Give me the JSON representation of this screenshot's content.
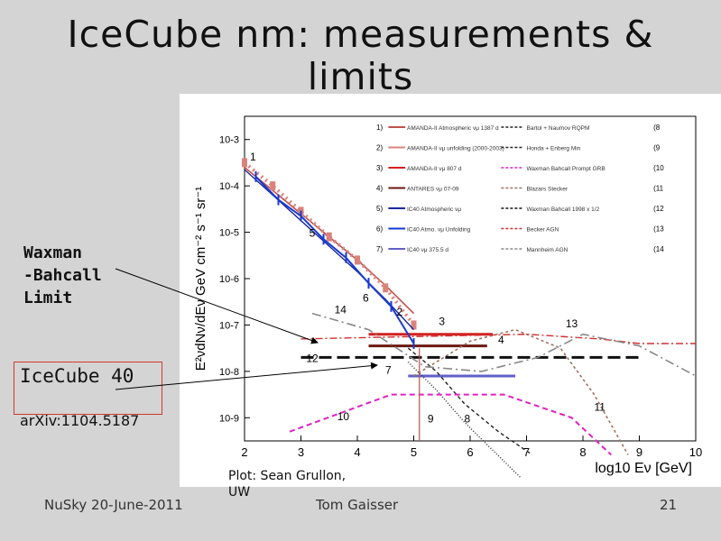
{
  "slide": {
    "title_line1": "IceCube nm: measurements &",
    "title_line2": "limits",
    "label_wb_1": "Waxman",
    "label_wb_2": "-Bahcall",
    "label_wb_3": "Limit",
    "label_ic40": "IceCube 40",
    "arxiv": "arXiv:1104.5187",
    "credit": "Plot: Sean Grullon,\nUW",
    "footer_left": "NuSky 20-June-2011",
    "footer_center": "Tom Gaisser",
    "footer_right": "21"
  },
  "chart_data": {
    "type": "line",
    "title": "",
    "xlabel": "log10 Eν [GeV]",
    "ylabel": "E²νdNν/dEν GeV cm⁻² s⁻¹ sr⁻¹",
    "xlim": [
      2,
      10
    ],
    "x_ticks": [
      2,
      3,
      4,
      5,
      6,
      7,
      8,
      9,
      10
    ],
    "y_log_range": [
      -9.5,
      -2.5
    ],
    "y_ticks": [
      "10-3",
      "10-4",
      "10-5",
      "10-6",
      "10-7",
      "10-8",
      "10-9"
    ],
    "legend_left": [
      {
        "num": "1)",
        "text": "AMANDA-II Atmospheric νμ 1387 d",
        "color": "#c0504d"
      },
      {
        "num": "2)",
        "text": "AMANDA-II νμ unfolding (2000-2003)",
        "color": "#d9837b"
      },
      {
        "num": "3)",
        "text": "AMANDA-II νμ 807 d",
        "color": "#d42020"
      },
      {
        "num": "4)",
        "text": "ANTARES νμ 07-09",
        "color": "#6b1a10"
      },
      {
        "num": "5)",
        "text": "IC40 Atmospheric νμ",
        "color": "#1a2a9a"
      },
      {
        "num": "6)",
        "text": "IC40 Atmo. νμ Unfolding",
        "color": "#1a3ad0"
      },
      {
        "num": "7)",
        "text": "IC40 νμ 375.5 d",
        "color": "#6060c8"
      }
    ],
    "legend_right": [
      {
        "num": "(8",
        "text": "Bartol + Naumov RQPM",
        "color": "#222222"
      },
      {
        "num": "(9",
        "text": "Honda + Enberg Min",
        "color": "#222222"
      },
      {
        "num": "(10",
        "text": "Waxman Bahcall Prompt GRB",
        "color": "#e020c0"
      },
      {
        "num": "(11",
        "text": "Blazars Stecker",
        "color": "#a07060"
      },
      {
        "num": "(12",
        "text": "Waxman Bahcall 1998 x 1/2",
        "color": "#111111"
      },
      {
        "num": "(13",
        "text": "Becker AGN",
        "color": "#d03030"
      },
      {
        "num": "(14",
        "text": "Mannheim AGN",
        "color": "#888888"
      }
    ],
    "series": [
      {
        "name": "1",
        "x": [
          2.0,
          2.5,
          3.0,
          3.5,
          4.0,
          4.5,
          5.0
        ],
        "logy": [
          -3.6,
          -4.1,
          -4.6,
          -5.1,
          -5.6,
          -6.15,
          -6.75
        ]
      },
      {
        "name": "2",
        "x": [
          2.0,
          2.5,
          3.0,
          3.5,
          4.0,
          4.5,
          5.0
        ],
        "logy": [
          -3.5,
          -4.0,
          -4.55,
          -5.1,
          -5.6,
          -6.2,
          -7.0
        ]
      },
      {
        "name": "3",
        "x": [
          4.2,
          6.4
        ],
        "logy": [
          -7.2,
          -7.2
        ]
      },
      {
        "name": "4",
        "x": [
          4.2,
          6.3
        ],
        "logy": [
          -7.45,
          -7.45
        ]
      },
      {
        "name": "5",
        "x": [
          2.0,
          2.5,
          3.0,
          3.5,
          4.0,
          4.5,
          5.0
        ],
        "logy": [
          -3.65,
          -4.2,
          -4.75,
          -5.3,
          -5.85,
          -6.45,
          -7.1
        ]
      },
      {
        "name": "6",
        "x": [
          2.2,
          2.6,
          3.0,
          3.4,
          3.8,
          4.2,
          4.6,
          5.0
        ],
        "logy": [
          -3.8,
          -4.3,
          -4.65,
          -5.15,
          -5.55,
          -6.1,
          -6.6,
          -7.4
        ]
      },
      {
        "name": "7",
        "x": [
          4.9,
          6.8
        ],
        "logy": [
          -8.1,
          -8.1
        ]
      },
      {
        "name": "8",
        "x": [
          4.9,
          5.4,
          5.9,
          6.5,
          7.1
        ],
        "logy": [
          -7.5,
          -8.0,
          -8.7,
          -9.3,
          -9.8
        ]
      },
      {
        "name": "9",
        "x": [
          4.9,
          5.4,
          5.9,
          6.4,
          6.9
        ],
        "logy": [
          -7.8,
          -8.4,
          -9.1,
          -9.7,
          -10.3
        ]
      },
      {
        "name": "10",
        "x": [
          2.8,
          4.6,
          6.6,
          7.8,
          8.5
        ],
        "logy": [
          -9.3,
          -8.5,
          -8.5,
          -9.0,
          -9.8
        ]
      },
      {
        "name": "11",
        "x": [
          5.0,
          6.0,
          6.8,
          7.6,
          8.2,
          8.8
        ],
        "logy": [
          -8.1,
          -7.35,
          -7.1,
          -7.5,
          -8.5,
          -9.8
        ]
      },
      {
        "name": "12",
        "x": [
          3.0,
          9.0
        ],
        "logy": [
          -7.7,
          -7.7
        ]
      },
      {
        "name": "13",
        "x": [
          3.0,
          5.0,
          7.0,
          8.3,
          9.0,
          10.0
        ],
        "logy": [
          -7.3,
          -7.25,
          -7.2,
          -7.3,
          -7.4,
          -7.4
        ]
      },
      {
        "name": "14",
        "x": [
          3.2,
          4.2,
          5.2,
          6.2,
          7.2,
          8.0,
          9.0,
          10.0
        ],
        "logy": [
          -6.75,
          -7.1,
          -7.9,
          -8.0,
          -7.7,
          -7.2,
          -7.45,
          -8.1
        ]
      }
    ],
    "curve_labels": [
      {
        "text": "1",
        "x": 2.15,
        "logy": -3.45
      },
      {
        "text": "2",
        "x": 4.75,
        "logy": -6.8
      },
      {
        "text": "3",
        "x": 5.5,
        "logy": -7.0
      },
      {
        "text": "4",
        "x": 6.55,
        "logy": -7.4
      },
      {
        "text": "5",
        "x": 3.2,
        "logy": -5.1
      },
      {
        "text": "6",
        "x": 4.15,
        "logy": -6.5
      },
      {
        "text": "7",
        "x": 4.55,
        "logy": -8.05
      },
      {
        "text": "8",
        "x": 5.95,
        "logy": -9.1
      },
      {
        "text": "9",
        "x": 5.3,
        "logy": -9.1
      },
      {
        "text": "10",
        "x": 3.75,
        "logy": -9.05
      },
      {
        "text": "11",
        "x": 8.3,
        "logy": -8.85
      },
      {
        "text": "12",
        "x": 3.2,
        "logy": -7.8
      },
      {
        "text": "13",
        "x": 7.8,
        "logy": -7.05
      },
      {
        "text": "14",
        "x": 3.7,
        "logy": -6.75
      }
    ]
  }
}
